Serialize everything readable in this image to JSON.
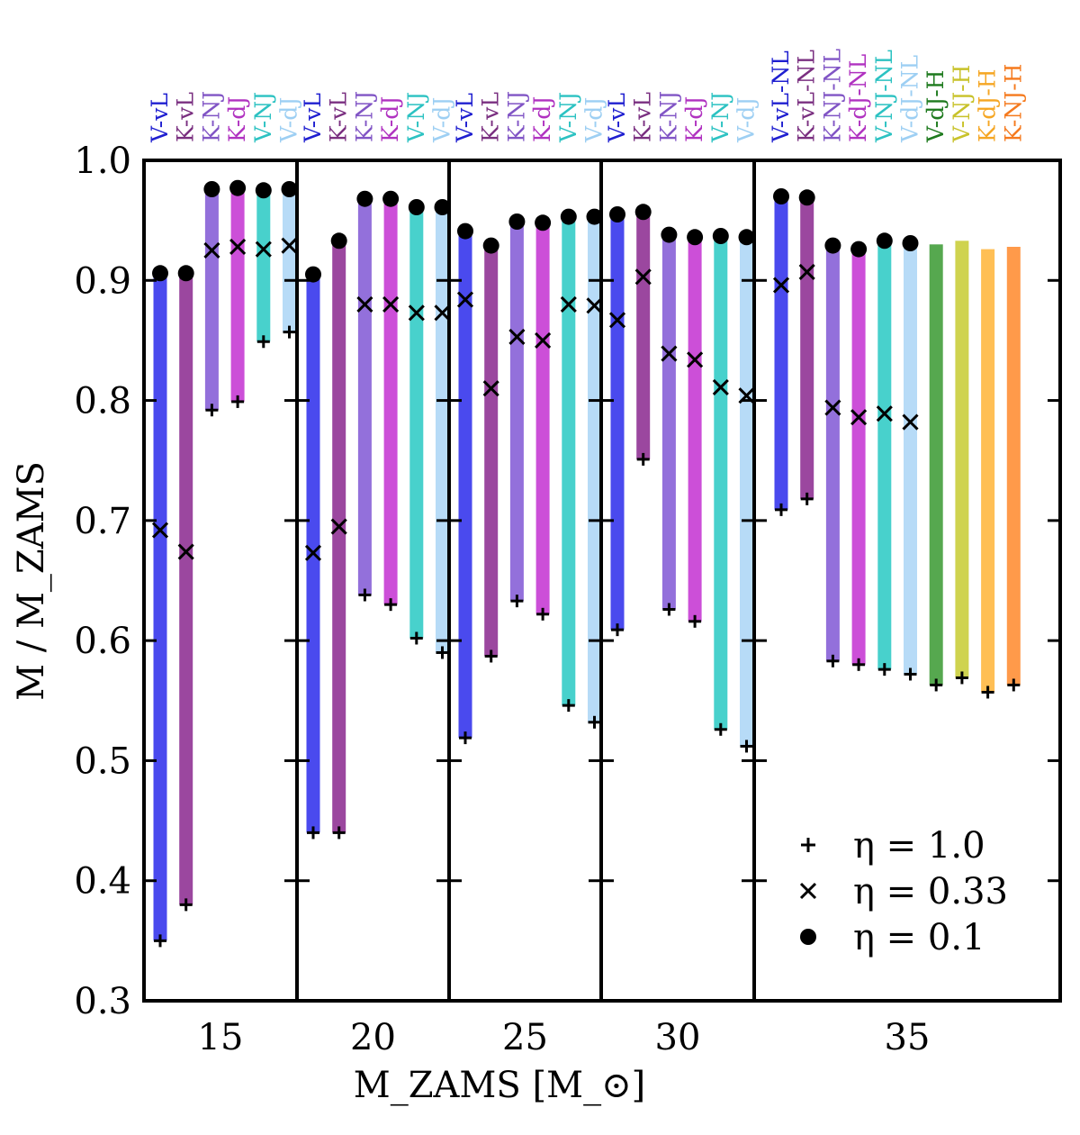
{
  "chart_data": {
    "type": "bar",
    "xlabel": "M_ZAMS [M_⊙]",
    "ylabel": "M / M_ZAMS",
    "ylim": [
      0.3,
      1.0
    ],
    "yticks": [
      "0.3",
      "0.4",
      "0.5",
      "0.6",
      "0.7",
      "0.8",
      "0.9",
      "1.0"
    ],
    "legend": {
      "placement": "lower-right",
      "entries": [
        {
          "marker": "plus",
          "label": "η = 1.0"
        },
        {
          "marker": "cross",
          "label": "η = 0.33"
        },
        {
          "marker": "dot",
          "label": "η = 0.1"
        }
      ]
    },
    "colors": {
      "V-vL": "#4a4aee",
      "K-vL": "#9b479f",
      "K-NJ": "#9370db",
      "K-dJ": "#cc4fd8",
      "V-NJ": "#48d1cc",
      "V-dJ": "#b7dbf7",
      "V-vL-NL": "#4a4aee",
      "K-vL-NL": "#9b479f",
      "K-NJ-NL": "#9370db",
      "K-dJ-NL": "#cc4fd8",
      "V-NJ-NL": "#48d1cc",
      "V-dJ-NL": "#b7dbf7",
      "V-dJ-H": "#56a84f",
      "V-NJ-H": "#cfd34f",
      "K-dJ-H": "#ffbf55",
      "K-NJ-H": "#ff9a4a"
    },
    "label_colors": {
      "V-vL": "#1f1fd0",
      "K-vL": "#7a2f80",
      "K-NJ": "#8155c5",
      "K-dJ": "#b032c0",
      "V-NJ": "#2cc2c2",
      "V-dJ": "#9dcff3",
      "V-vL-NL": "#1f1fd0",
      "K-vL-NL": "#7a2f80",
      "K-NJ-NL": "#8155c5",
      "K-dJ-NL": "#b032c0",
      "V-NJ-NL": "#2cc2c2",
      "V-dJ-NL": "#9dcff3",
      "V-dJ-H": "#1e7a1e",
      "V-NJ-H": "#c8c22a",
      "K-dJ-H": "#f5a623",
      "K-NJ-H": "#f57a1e"
    },
    "groups": [
      {
        "label": "15",
        "bars": [
          {
            "name": "V-vL",
            "eta_1_0": 0.35,
            "eta_0_33": 0.692,
            "eta_0_1": 0.906
          },
          {
            "name": "K-vL",
            "eta_1_0": 0.38,
            "eta_0_33": 0.674,
            "eta_0_1": 0.906
          },
          {
            "name": "K-NJ",
            "eta_1_0": 0.792,
            "eta_0_33": 0.925,
            "eta_0_1": 0.976
          },
          {
            "name": "K-dJ",
            "eta_1_0": 0.799,
            "eta_0_33": 0.928,
            "eta_0_1": 0.977
          },
          {
            "name": "V-NJ",
            "eta_1_0": 0.849,
            "eta_0_33": 0.926,
            "eta_0_1": 0.975
          },
          {
            "name": "V-dJ",
            "eta_1_0": 0.857,
            "eta_0_33": 0.929,
            "eta_0_1": 0.976
          }
        ]
      },
      {
        "label": "20",
        "bars": [
          {
            "name": "V-vL",
            "eta_1_0": 0.44,
            "eta_0_33": 0.673,
            "eta_0_1": 0.905
          },
          {
            "name": "K-vL",
            "eta_1_0": 0.44,
            "eta_0_33": 0.695,
            "eta_0_1": 0.933
          },
          {
            "name": "K-NJ",
            "eta_1_0": 0.638,
            "eta_0_33": 0.88,
            "eta_0_1": 0.968
          },
          {
            "name": "K-dJ",
            "eta_1_0": 0.63,
            "eta_0_33": 0.88,
            "eta_0_1": 0.968
          },
          {
            "name": "V-NJ",
            "eta_1_0": 0.602,
            "eta_0_33": 0.873,
            "eta_0_1": 0.961
          },
          {
            "name": "V-dJ",
            "eta_1_0": 0.59,
            "eta_0_33": 0.873,
            "eta_0_1": 0.961
          }
        ]
      },
      {
        "label": "25",
        "bars": [
          {
            "name": "V-vL",
            "eta_1_0": 0.519,
            "eta_0_33": 0.884,
            "eta_0_1": 0.941
          },
          {
            "name": "K-vL",
            "eta_1_0": 0.587,
            "eta_0_33": 0.81,
            "eta_0_1": 0.929
          },
          {
            "name": "K-NJ",
            "eta_1_0": 0.633,
            "eta_0_33": 0.853,
            "eta_0_1": 0.949
          },
          {
            "name": "K-dJ",
            "eta_1_0": 0.622,
            "eta_0_33": 0.85,
            "eta_0_1": 0.948
          },
          {
            "name": "V-NJ",
            "eta_1_0": 0.546,
            "eta_0_33": 0.88,
            "eta_0_1": 0.953
          },
          {
            "name": "V-dJ",
            "eta_1_0": 0.532,
            "eta_0_33": 0.879,
            "eta_0_1": 0.953
          }
        ]
      },
      {
        "label": "30",
        "bars": [
          {
            "name": "V-vL",
            "eta_1_0": 0.609,
            "eta_0_33": 0.867,
            "eta_0_1": 0.955
          },
          {
            "name": "K-vL",
            "eta_1_0": 0.751,
            "eta_0_33": 0.903,
            "eta_0_1": 0.957
          },
          {
            "name": "K-NJ",
            "eta_1_0": 0.626,
            "eta_0_33": 0.839,
            "eta_0_1": 0.938
          },
          {
            "name": "K-dJ",
            "eta_1_0": 0.616,
            "eta_0_33": 0.834,
            "eta_0_1": 0.936
          },
          {
            "name": "V-NJ",
            "eta_1_0": 0.526,
            "eta_0_33": 0.811,
            "eta_0_1": 0.937
          },
          {
            "name": "V-dJ",
            "eta_1_0": 0.512,
            "eta_0_33": 0.804,
            "eta_0_1": 0.936
          }
        ]
      },
      {
        "label": "35",
        "bars": [
          {
            "name": "V-vL-NL",
            "eta_1_0": 0.709,
            "eta_0_33": 0.896,
            "eta_0_1": 0.97
          },
          {
            "name": "K-vL-NL",
            "eta_1_0": 0.718,
            "eta_0_33": 0.907,
            "eta_0_1": 0.969
          },
          {
            "name": "K-NJ-NL",
            "eta_1_0": 0.583,
            "eta_0_33": 0.794,
            "eta_0_1": 0.929
          },
          {
            "name": "K-dJ-NL",
            "eta_1_0": 0.58,
            "eta_0_33": 0.786,
            "eta_0_1": 0.926
          },
          {
            "name": "V-NJ-NL",
            "eta_1_0": 0.576,
            "eta_0_33": 0.789,
            "eta_0_1": 0.933
          },
          {
            "name": "V-dJ-NL",
            "eta_1_0": 0.572,
            "eta_0_33": 0.782,
            "eta_0_1": 0.931
          },
          {
            "name": "V-dJ-H",
            "eta_1_0": 0.563,
            "top": 0.93
          },
          {
            "name": "V-NJ-H",
            "eta_1_0": 0.569,
            "top": 0.933
          },
          {
            "name": "K-dJ-H",
            "eta_1_0": 0.557,
            "top": 0.926
          },
          {
            "name": "K-NJ-H",
            "eta_1_0": 0.563,
            "top": 0.928
          }
        ]
      }
    ]
  }
}
